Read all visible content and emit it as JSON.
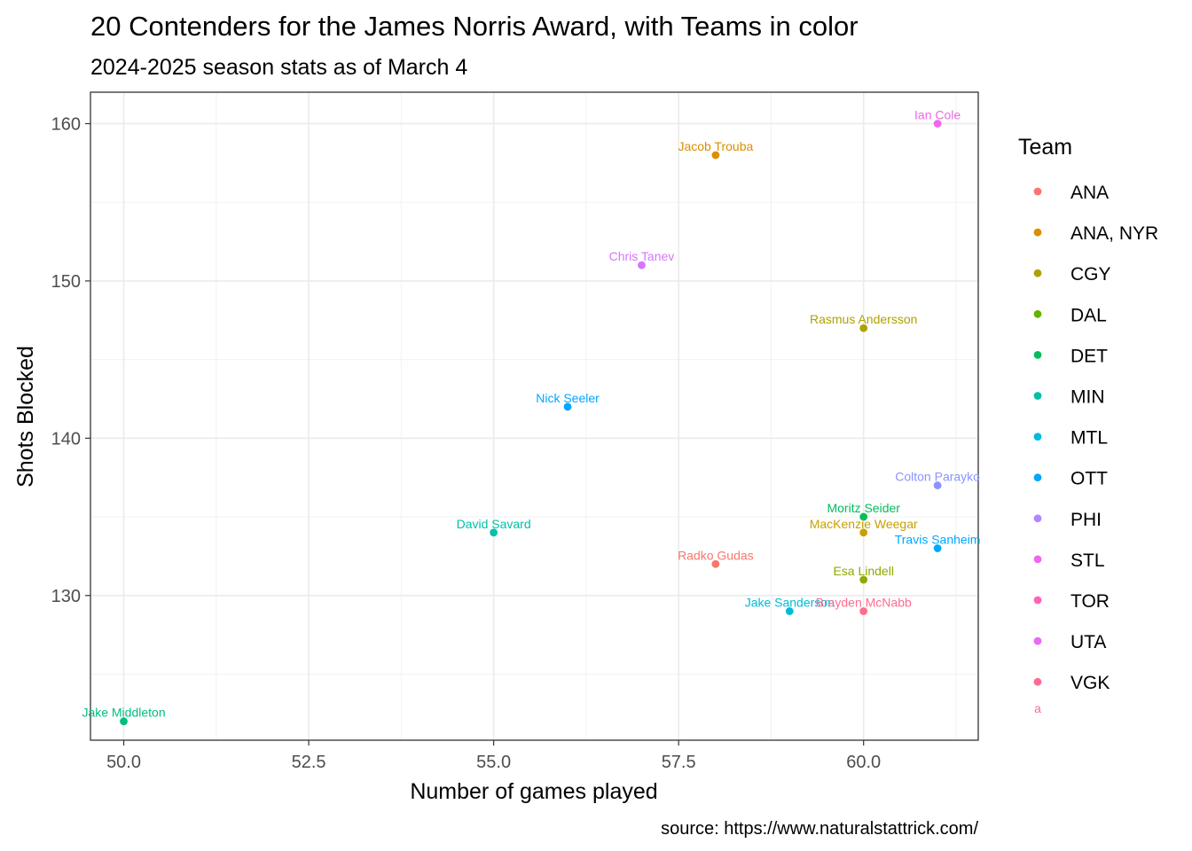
{
  "chart_data": {
    "type": "scatter",
    "title": "20 Contenders for the James Norris Award, with Teams in color",
    "subtitle": "2024-2025 season stats as of March 4",
    "xlabel": "Number of games played",
    "ylabel": "Shots Blocked",
    "caption": "source: https://www.naturalstattrick.com/",
    "xlim": [
      49.55,
      61.55
    ],
    "ylim": [
      120.8,
      162.0
    ],
    "x_ticks": [
      50.0,
      52.5,
      55.0,
      57.5,
      60.0
    ],
    "x_tick_labels": [
      "50.0",
      "52.5",
      "55.0",
      "57.5",
      "60.0"
    ],
    "y_ticks": [
      130,
      140,
      150,
      160
    ],
    "y_tick_labels": [
      "130",
      "140",
      "150",
      "160"
    ],
    "grid": true,
    "legend_position": "right",
    "legend": {
      "title": "Team",
      "key_glyph_text": "a",
      "entries": [
        {
          "team": "ANA",
          "color": "#F8766D"
        },
        {
          "team": "ANA, NYR",
          "color": "#DB8E00"
        },
        {
          "team": "CGY",
          "color": "#AEA200"
        },
        {
          "team": "DAL",
          "color": "#64B200"
        },
        {
          "team": "DET",
          "color": "#00BD5C"
        },
        {
          "team": "MIN",
          "color": "#00C1A7"
        },
        {
          "team": "MTL",
          "color": "#00BADE"
        },
        {
          "team": "OTT",
          "color": "#00A6FF"
        },
        {
          "team": "PHI",
          "color": "#B385FF"
        },
        {
          "team": "STL",
          "color": "#EF67EB"
        },
        {
          "team": "TOR",
          "color": "#FF63B6"
        },
        {
          "team": "UTA",
          "color": "#E76BF3"
        },
        {
          "team": "VGK",
          "color": "#FF6C91"
        }
      ]
    },
    "points": [
      {
        "name": "Ian Cole",
        "x": 61,
        "y": 160,
        "color": "#EF67EB"
      },
      {
        "name": "Jacob Trouba",
        "x": 58,
        "y": 158,
        "color": "#DB8E00"
      },
      {
        "name": "Chris Tanev",
        "x": 57,
        "y": 151,
        "color": "#D575FE"
      },
      {
        "name": "Rasmus Andersson",
        "x": 60,
        "y": 147,
        "color": "#AEA200"
      },
      {
        "name": "Nick Seeler",
        "x": 56,
        "y": 142,
        "color": "#00A6FF"
      },
      {
        "name": "Colton Parayko",
        "x": 61,
        "y": 137,
        "color": "#8B93FF"
      },
      {
        "name": "Moritz Seider",
        "x": 60,
        "y": 135,
        "color": "#00BD5C"
      },
      {
        "name": "David Savard",
        "x": 55,
        "y": 134,
        "color": "#00C1A7"
      },
      {
        "name": "MacKenzie Weegar",
        "x": 60,
        "y": 134,
        "color": "#C7A000"
      },
      {
        "name": "Travis Sanheim",
        "x": 61,
        "y": 133,
        "color": "#00A9FF"
      },
      {
        "name": "Radko Gudas",
        "x": 58,
        "y": 132,
        "color": "#F8766D"
      },
      {
        "name": "Esa Lindell",
        "x": 60,
        "y": 131,
        "color": "#8EAB00"
      },
      {
        "name": "Jake Sanderson",
        "x": 59,
        "y": 129,
        "color": "#00BCD8"
      },
      {
        "name": "Brayden McNabb",
        "x": 60,
        "y": 129,
        "color": "#FF6C91"
      },
      {
        "name": "Jake Middleton",
        "x": 50,
        "y": 122,
        "color": "#00BF7D"
      }
    ]
  }
}
